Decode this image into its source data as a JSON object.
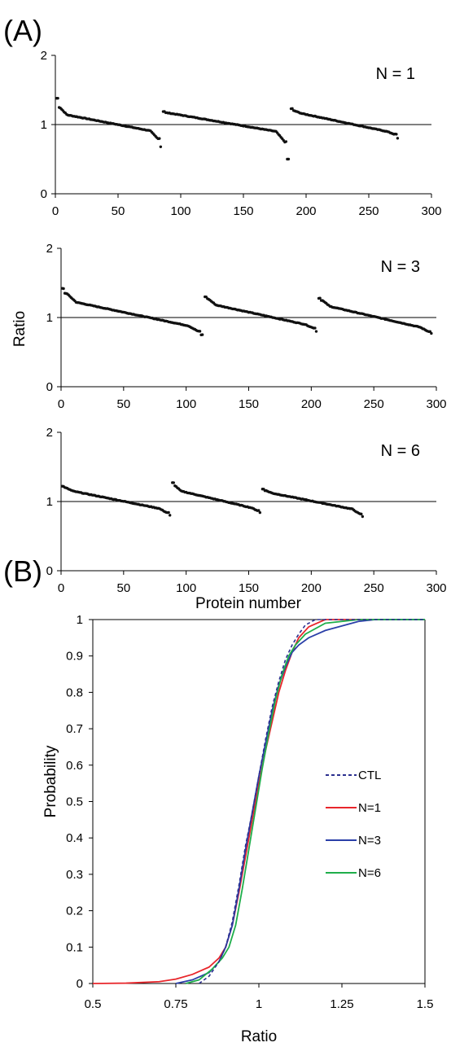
{
  "panels": {
    "A": "(A)",
    "B": "(B)"
  },
  "colors": {
    "points": "#111111",
    "axis": "#000000",
    "ctl": "#2b2f8f",
    "n1": "#e8262b",
    "n3": "#2a3fa8",
    "n6": "#1fae4b"
  },
  "chart_data": [
    {
      "type": "scatter",
      "panel": "(A)",
      "label": "N = 1",
      "xlim": [
        0,
        300
      ],
      "ylim": [
        0,
        2
      ],
      "xticks": [
        "0",
        "50",
        "100",
        "150",
        "200",
        "250",
        "300"
      ],
      "yticks": [
        "0",
        "1",
        "2"
      ],
      "reference_line_y": 1,
      "segments": [
        {
          "x_start": 1,
          "x_end": 84,
          "start": 1.38,
          "second": 1.25,
          "head": 1.14,
          "mid": 1.0,
          "tail": 0.91,
          "pre_last": 0.8,
          "last": 0.68
        },
        {
          "x_start": 86,
          "x_end": 186,
          "start": 1.19,
          "second": 1.17,
          "head": 1.15,
          "mid": 1.0,
          "tail": 0.9,
          "pre_last": 0.75,
          "last": 0.5
        },
        {
          "x_start": 188,
          "x_end": 273,
          "start": 1.23,
          "second": 1.2,
          "head": 1.16,
          "mid": 1.0,
          "tail": 0.9,
          "pre_last": 0.86,
          "last": 0.8
        }
      ]
    },
    {
      "type": "scatter",
      "label": "N = 3",
      "ylabel": "Ratio",
      "xlim": [
        0,
        300
      ],
      "ylim": [
        0,
        2
      ],
      "xticks": [
        "0",
        "50",
        "100",
        "150",
        "200",
        "250",
        "300"
      ],
      "yticks": [
        "0",
        "1",
        "2"
      ],
      "reference_line_y": 1,
      "segments": [
        {
          "x_start": 1,
          "x_end": 113,
          "start": 1.42,
          "second": 1.35,
          "head": 1.22,
          "mid": 1.0,
          "tail": 0.88,
          "pre_last": 0.8,
          "last": 0.75
        },
        {
          "x_start": 115,
          "x_end": 204,
          "start": 1.3,
          "second": 1.27,
          "head": 1.18,
          "mid": 1.0,
          "tail": 0.9,
          "pre_last": 0.85,
          "last": 0.8
        },
        {
          "x_start": 206,
          "x_end": 296,
          "start": 1.28,
          "second": 1.25,
          "head": 1.16,
          "mid": 1.0,
          "tail": 0.86,
          "pre_last": 0.8,
          "last": 0.77
        }
      ]
    },
    {
      "type": "scatter",
      "label": "N = 6",
      "xlabel": "Protein number",
      "xlim": [
        0,
        300
      ],
      "ylim": [
        0,
        2
      ],
      "xticks": [
        "0",
        "50",
        "100",
        "150",
        "200",
        "250",
        "300"
      ],
      "yticks": [
        "0",
        "1",
        "2"
      ],
      "reference_line_y": 1,
      "segments": [
        {
          "x_start": 1,
          "x_end": 87,
          "start": 1.22,
          "second": 1.2,
          "head": 1.15,
          "mid": 1.0,
          "tail": 0.9,
          "pre_last": 0.84,
          "last": 0.8
        },
        {
          "x_start": 89,
          "x_end": 159,
          "start": 1.27,
          "second": 1.23,
          "head": 1.15,
          "mid": 1.0,
          "tail": 0.91,
          "pre_last": 0.87,
          "last": 0.84
        },
        {
          "x_start": 161,
          "x_end": 241,
          "start": 1.18,
          "second": 1.16,
          "head": 1.12,
          "mid": 1.0,
          "tail": 0.89,
          "pre_last": 0.82,
          "last": 0.78
        }
      ]
    },
    {
      "type": "line",
      "panel": "(B)",
      "xlabel": "Ratio",
      "ylabel": "Probability",
      "xlim": [
        0.5,
        1.5
      ],
      "ylim": [
        0,
        1
      ],
      "xticks": [
        "0.5",
        "0.75",
        "1",
        "1.25",
        "1.5"
      ],
      "yticks": [
        "0",
        "0.1",
        "0.2",
        "0.3",
        "0.4",
        "0.5",
        "0.6",
        "0.7",
        "0.8",
        "0.9",
        "1"
      ],
      "legend": "right",
      "series": [
        {
          "name": "CTL",
          "style": "dashed",
          "points": [
            [
              0.82,
              0
            ],
            [
              0.85,
              0.02
            ],
            [
              0.88,
              0.06
            ],
            [
              0.9,
              0.1
            ],
            [
              0.92,
              0.17
            ],
            [
              0.94,
              0.27
            ],
            [
              0.96,
              0.38
            ],
            [
              0.98,
              0.47
            ],
            [
              1.0,
              0.57
            ],
            [
              1.02,
              0.67
            ],
            [
              1.04,
              0.76
            ],
            [
              1.06,
              0.83
            ],
            [
              1.08,
              0.89
            ],
            [
              1.1,
              0.93
            ],
            [
              1.12,
              0.96
            ],
            [
              1.14,
              0.985
            ],
            [
              1.17,
              1.0
            ],
            [
              1.5,
              1.0
            ]
          ]
        },
        {
          "name": "N=1",
          "style": "solid",
          "points": [
            [
              0.5,
              0
            ],
            [
              0.6,
              0.001
            ],
            [
              0.7,
              0.005
            ],
            [
              0.75,
              0.012
            ],
            [
              0.8,
              0.025
            ],
            [
              0.85,
              0.045
            ],
            [
              0.88,
              0.07
            ],
            [
              0.9,
              0.1
            ],
            [
              0.92,
              0.16
            ],
            [
              0.94,
              0.25
            ],
            [
              0.96,
              0.35
            ],
            [
              0.98,
              0.45
            ],
            [
              1.0,
              0.55
            ],
            [
              1.02,
              0.64
            ],
            [
              1.04,
              0.72
            ],
            [
              1.06,
              0.8
            ],
            [
              1.08,
              0.86
            ],
            [
              1.1,
              0.91
            ],
            [
              1.12,
              0.95
            ],
            [
              1.15,
              0.98
            ],
            [
              1.2,
              1.0
            ],
            [
              1.5,
              1.0
            ]
          ]
        },
        {
          "name": "N=3",
          "style": "solid",
          "points": [
            [
              0.75,
              0
            ],
            [
              0.8,
              0.01
            ],
            [
              0.85,
              0.03
            ],
            [
              0.88,
              0.06
            ],
            [
              0.9,
              0.1
            ],
            [
              0.92,
              0.16
            ],
            [
              0.94,
              0.26
            ],
            [
              0.96,
              0.37
            ],
            [
              0.98,
              0.47
            ],
            [
              1.0,
              0.57
            ],
            [
              1.02,
              0.66
            ],
            [
              1.04,
              0.75
            ],
            [
              1.06,
              0.82
            ],
            [
              1.08,
              0.87
            ],
            [
              1.1,
              0.91
            ],
            [
              1.12,
              0.93
            ],
            [
              1.15,
              0.95
            ],
            [
              1.2,
              0.97
            ],
            [
              1.3,
              0.995
            ],
            [
              1.35,
              1.0
            ],
            [
              1.5,
              1.0
            ]
          ]
        },
        {
          "name": "N=6",
          "style": "solid",
          "points": [
            [
              0.78,
              0
            ],
            [
              0.82,
              0.01
            ],
            [
              0.86,
              0.04
            ],
            [
              0.89,
              0.07
            ],
            [
              0.91,
              0.1
            ],
            [
              0.93,
              0.16
            ],
            [
              0.95,
              0.26
            ],
            [
              0.97,
              0.37
            ],
            [
              0.99,
              0.48
            ],
            [
              1.01,
              0.59
            ],
            [
              1.03,
              0.69
            ],
            [
              1.05,
              0.78
            ],
            [
              1.07,
              0.85
            ],
            [
              1.09,
              0.9
            ],
            [
              1.11,
              0.93
            ],
            [
              1.14,
              0.96
            ],
            [
              1.2,
              0.99
            ],
            [
              1.3,
              1.0
            ],
            [
              1.5,
              1.0
            ]
          ]
        }
      ]
    }
  ]
}
